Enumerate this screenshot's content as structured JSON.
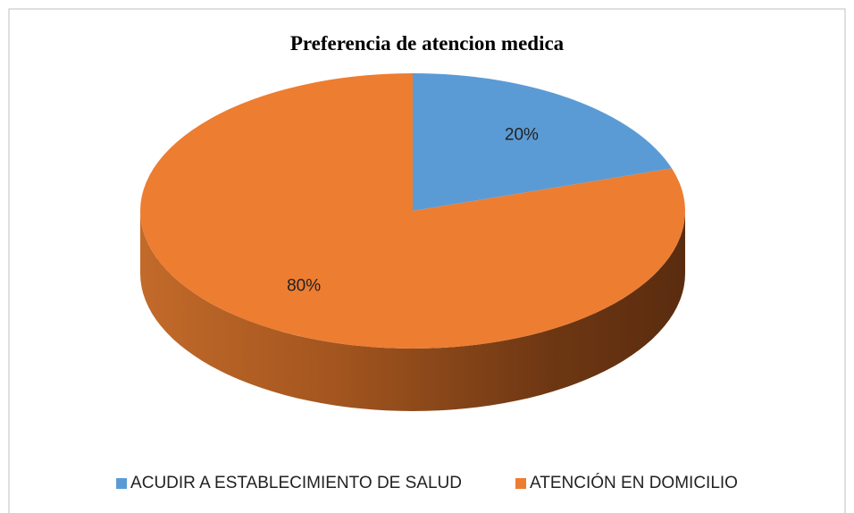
{
  "chart_data": {
    "type": "pie",
    "title": "Preferencia de atencion medica",
    "categories": [
      "ACUDIR A ESTABLECIMIENTO DE SALUD",
      "ATENCIÓN EN DOMICILIO"
    ],
    "values": [
      20,
      80
    ],
    "value_labels": [
      "20%",
      "80%"
    ],
    "colors": [
      "#5b9bd5",
      "#ed7d31"
    ],
    "legend": "bottom"
  }
}
